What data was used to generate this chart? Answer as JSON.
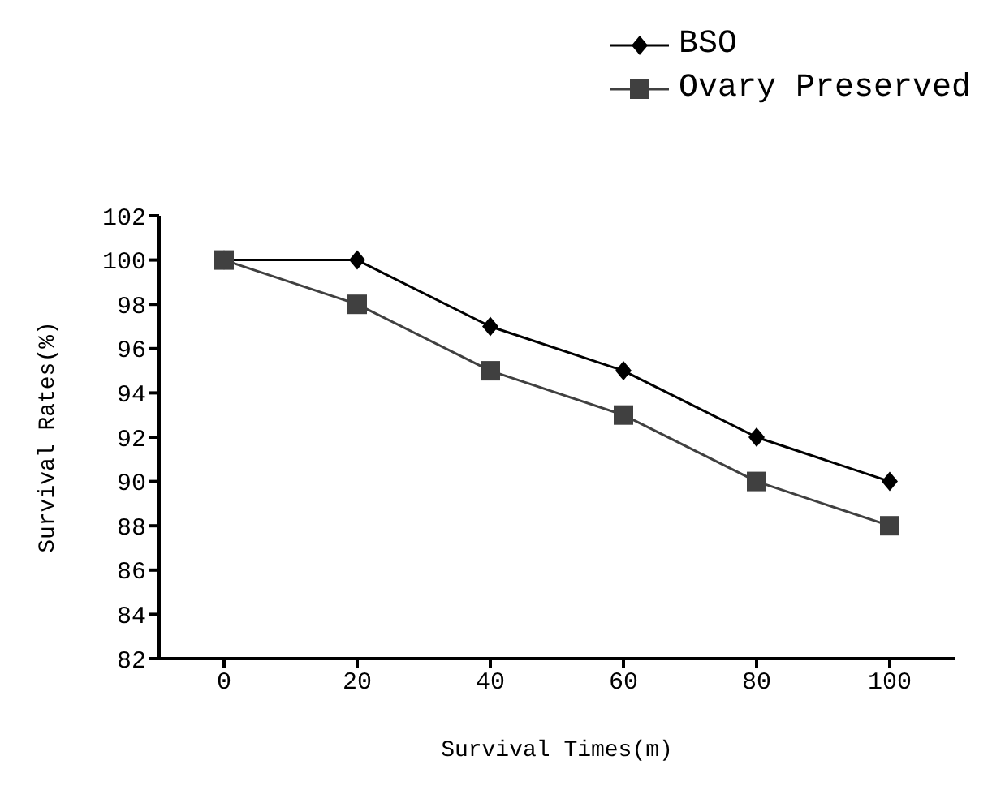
{
  "chart_data": {
    "type": "line",
    "xlabel": "Survival Times(m)",
    "ylabel": "Survival Rates(%)",
    "categories": [
      "0",
      "20",
      "40",
      "60",
      "80",
      "100"
    ],
    "series": [
      {
        "name": "BSO",
        "color": "#000000",
        "marker": "diamond",
        "values": [
          100,
          100,
          97,
          95,
          92,
          90
        ]
      },
      {
        "name": "Ovary Preserved",
        "color": "#404040",
        "marker": "square",
        "values": [
          100,
          98,
          95,
          93,
          90,
          88
        ]
      }
    ],
    "ylim": [
      82,
      102
    ],
    "yticks": [
      82,
      84,
      86,
      88,
      90,
      92,
      94,
      96,
      98,
      100,
      102
    ],
    "grid": false,
    "legend": "top right",
    "line_style": "solid"
  }
}
